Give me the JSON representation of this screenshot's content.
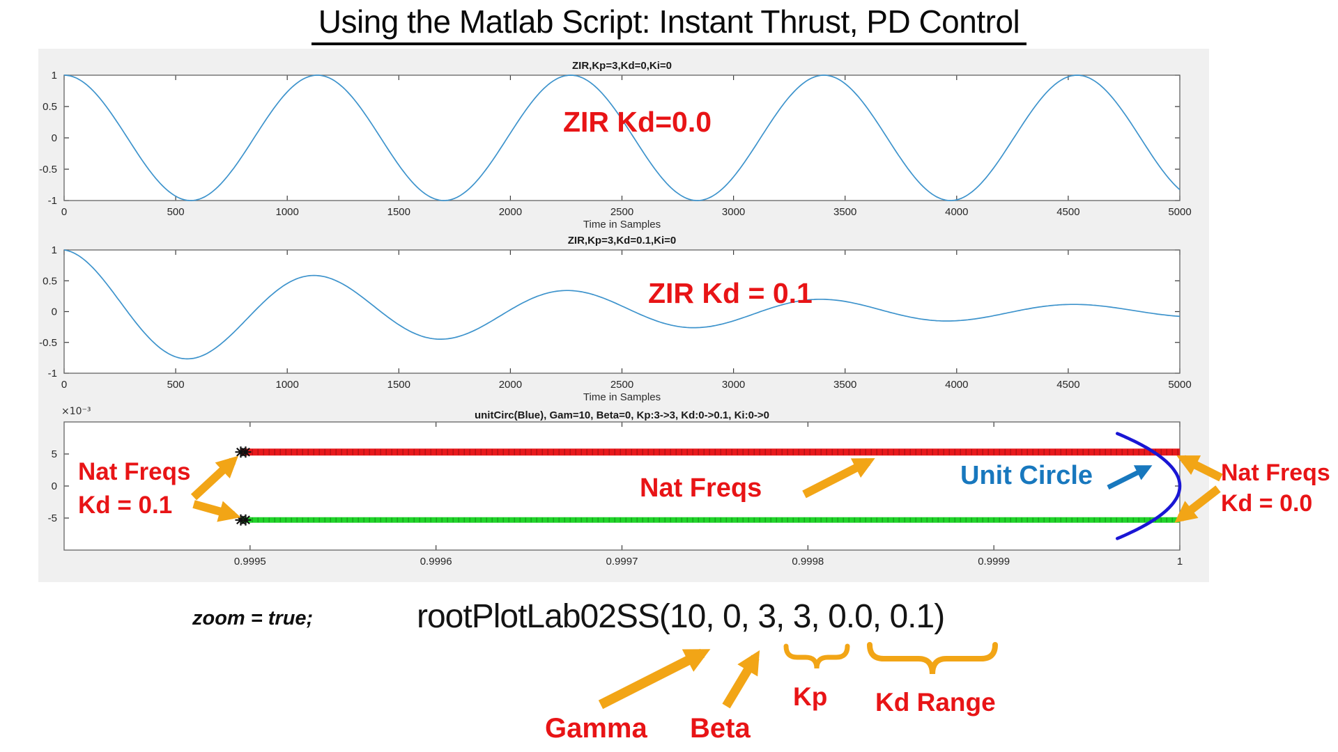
{
  "slide": {
    "title": "Using the Matlab Script: Instant Thrust, PD Control"
  },
  "colors": {
    "figure_bg": "#f0f0f0",
    "annotation_red": "#e81416",
    "arrow_orange": "#f2a516",
    "unit_circle_text_blue": "#1878be",
    "unit_circle_arc_blue": "#1a16d4",
    "matlab_line_blue": "#3d93cc",
    "locus_red": "#e8191c",
    "locus_green": "#21d42a"
  },
  "annotations": {
    "zir_kd_00": "ZIR Kd=0.0",
    "zir_kd_01": "ZIR Kd = 0.1",
    "nat_freqs_left_line1": "Nat Freqs",
    "nat_freqs_left_line2": "Kd = 0.1",
    "nat_freqs_mid": "Nat Freqs",
    "unit_circle": "Unit Circle",
    "nat_freqs_right_line1": "Nat Freqs",
    "nat_freqs_right_line2": "Kd = 0.0",
    "zoom_code": "zoom = true;",
    "function_call": "rootPlotLab02SS(10, 0, 3, 3, 0.0, 0.1)",
    "gamma": "Gamma",
    "beta": "Beta",
    "kp": "Kp",
    "kd_range": "Kd Range"
  },
  "chart_data": [
    {
      "type": "line",
      "title": "ZIR,Kp=3,Kd=0,Ki=0",
      "xlabel": "Time in Samples",
      "xlim": [
        0,
        5000
      ],
      "ylim": [
        -1,
        1
      ],
      "xticks": [
        0,
        500,
        1000,
        1500,
        2000,
        2500,
        3000,
        3500,
        4000,
        4500,
        5000
      ],
      "yticks": [
        -1,
        -0.5,
        0,
        0.5,
        1
      ],
      "signal": {
        "form": "cosine",
        "amplitude": 1,
        "period_samples": 1135,
        "decay_tau_samples": null
      },
      "description": "Undamped zero-input response: constant-amplitude cosine, peaks at 0, 1135, 2270, 3405, 4540 samples"
    },
    {
      "type": "line",
      "title": "ZIR,Kp=3,Kd=0.1,Ki=0",
      "xlabel": "Time in Samples",
      "xlim": [
        0,
        5000
      ],
      "ylim": [
        -1,
        1
      ],
      "xticks": [
        0,
        500,
        1000,
        1500,
        2000,
        2500,
        3000,
        3500,
        4000,
        4500,
        5000
      ],
      "yticks": [
        -1,
        -0.5,
        0,
        0.5,
        1
      ],
      "signal": {
        "form": "damped_cosine",
        "amplitude": 1,
        "period_samples": 1135,
        "decay_tau_samples": 2110
      },
      "extrema": [
        {
          "x": 0,
          "y": 1.0
        },
        {
          "x": 550,
          "y": -0.78
        },
        {
          "x": 1130,
          "y": 0.58
        },
        {
          "x": 1700,
          "y": -0.44
        },
        {
          "x": 2270,
          "y": 0.33
        },
        {
          "x": 2840,
          "y": -0.26
        },
        {
          "x": 3410,
          "y": 0.19
        },
        {
          "x": 3980,
          "y": -0.14
        },
        {
          "x": 4550,
          "y": 0.11
        },
        {
          "x": 5000,
          "y": -0.07
        }
      ],
      "description": "Damped zero-input response: decaying cosine"
    },
    {
      "type": "scatter",
      "title": "unitCirc(Blue), Gam=10, Beta=0, Kp:3->3, Kd:0->0.1, Ki:0->0",
      "y_exponent_label": "×10⁻³",
      "xlim": [
        0.9994,
        1.0
      ],
      "ylim_x10m3": [
        -10,
        10
      ],
      "xticks": [
        0.9995,
        0.9996,
        0.9997,
        0.9998,
        0.9999,
        1
      ],
      "yticks_x10m3": [
        5,
        0,
        -5
      ],
      "series": [
        {
          "name": "upper-natural-frequency-locus",
          "marker": "o",
          "color": "red",
          "y_x10m3": 5.3,
          "x_from": 0.999495,
          "x_to": 1.0
        },
        {
          "name": "lower-natural-frequency-locus",
          "marker": "x",
          "color": "green",
          "y_x10m3": -5.3,
          "x_from": 0.999495,
          "x_to": 1.0
        },
        {
          "name": "kd-0.1-endpoint-markers",
          "marker": "*",
          "color": "black",
          "points_x10m3": [
            [
              0.999495,
              5.3
            ],
            [
              0.999495,
              -5.3
            ]
          ]
        },
        {
          "name": "unit-circle",
          "color": "blue",
          "curve": "x = sqrt(1 - y^2), rightmost point (1, 0)",
          "y_span_x10m3": [
            -8.2,
            8.2
          ]
        }
      ],
      "description": "Root locus of natural frequencies as Kd sweeps 0 to 0.1; Kd=0.0 roots on unit circle at right, Kd=0.1 roots at left end of loci"
    }
  ]
}
